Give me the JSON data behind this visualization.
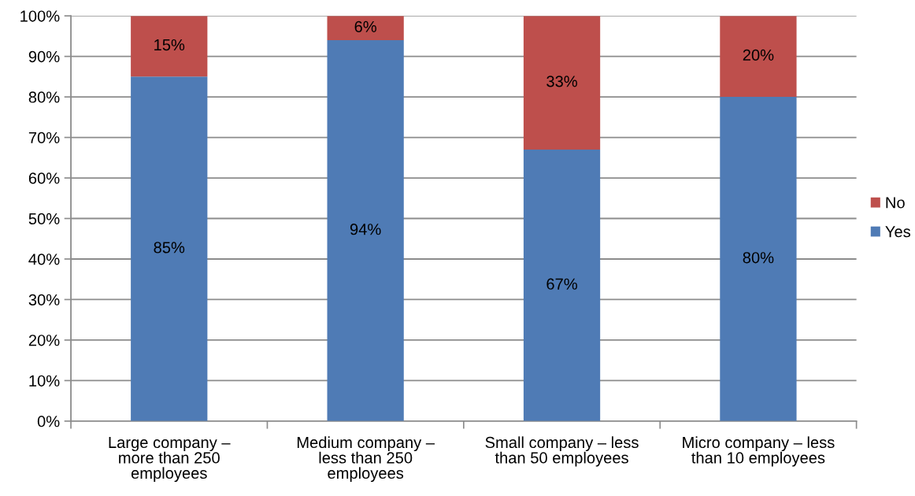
{
  "chart_data": {
    "type": "bar",
    "stacked": true,
    "categories": [
      "Large company –\nmore than 250\nemployees",
      "Medium company –\nless than 250\nemployees",
      "Small company – less\nthan 50 employees",
      "Micro company – less\nthan 10 employees"
    ],
    "series": [
      {
        "name": "Yes",
        "color": "#4f7bb5",
        "values": [
          85,
          94,
          67,
          80
        ],
        "value_labels": [
          "85%",
          "94%",
          "67%",
          "80%"
        ]
      },
      {
        "name": "No",
        "color": "#be4f4c",
        "values": [
          15,
          6,
          33,
          20
        ],
        "value_labels": [
          "15%",
          "6%",
          "33%",
          "20%"
        ]
      }
    ],
    "ylim": [
      0,
      100
    ],
    "yticks": [
      {
        "value": 0,
        "label": "0%"
      },
      {
        "value": 10,
        "label": "10%"
      },
      {
        "value": 20,
        "label": "20%"
      },
      {
        "value": 30,
        "label": "30%"
      },
      {
        "value": 40,
        "label": "40%"
      },
      {
        "value": 50,
        "label": "50%"
      },
      {
        "value": 60,
        "label": "60%"
      },
      {
        "value": 70,
        "label": "70%"
      },
      {
        "value": 80,
        "label": "80%"
      },
      {
        "value": 90,
        "label": "90%"
      },
      {
        "value": 100,
        "label": "100%"
      }
    ],
    "grid": "y",
    "legend": "right"
  }
}
